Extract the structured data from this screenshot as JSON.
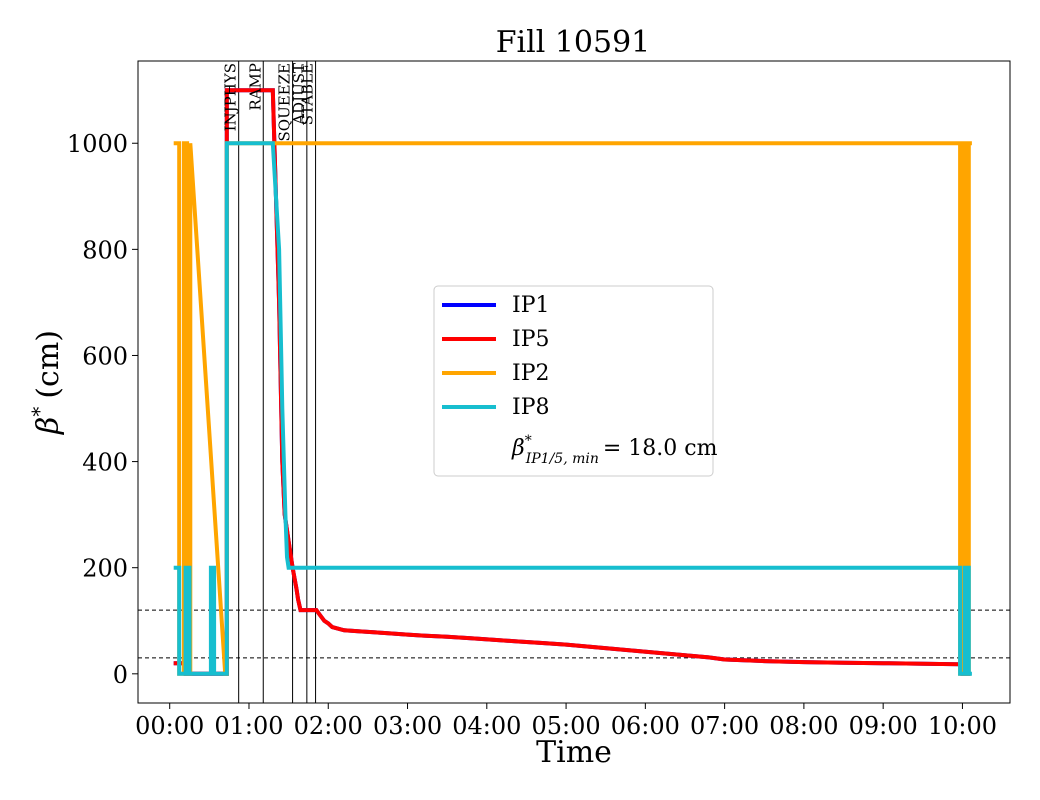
{
  "chart_data": {
    "type": "line",
    "title": "Fill 10591",
    "xlabel": "Time",
    "ylabel_symbol": "β",
    "ylabel_sup": "*",
    "ylabel_unit": "(cm)",
    "xlim": [
      -0.4,
      10.6
    ],
    "ylim": [
      -55,
      1155
    ],
    "x_ticks": [
      0,
      1,
      2,
      3,
      4,
      5,
      6,
      7,
      8,
      9,
      10
    ],
    "x_tick_labels": [
      "00:00",
      "01:00",
      "02:00",
      "03:00",
      "04:00",
      "05:00",
      "06:00",
      "07:00",
      "08:00",
      "09:00",
      "10:00"
    ],
    "y_ticks": [
      0,
      200,
      400,
      600,
      800,
      1000
    ],
    "y_tick_labels": [
      "0",
      "200",
      "400",
      "600",
      "800",
      "1000"
    ],
    "grid": false,
    "legend_position": "center",
    "legend": {
      "entries": [
        "IP1",
        "IP5",
        "IP2",
        "IP8"
      ],
      "beta_min_symbol": "β",
      "beta_min_sup": "*",
      "beta_min_sub": "IP1/5, min",
      "beta_min_value": "= 18.0 cm"
    },
    "phases": [
      {
        "label": "INJPHYS",
        "x": 0.87
      },
      {
        "label": "RAMP",
        "x": 1.18
      },
      {
        "label": "SQUEEZE",
        "x": 1.55
      },
      {
        "label": "ADJUST",
        "x": 1.73
      },
      {
        "label": "STABLE",
        "x": 1.84
      }
    ],
    "reference_lines": [
      120,
      30
    ],
    "colors": {
      "IP1": "#0000ff",
      "IP5": "#ff0000",
      "IP2": "#ffa500",
      "IP8": "#17becf"
    },
    "series": [
      {
        "name": "IP1",
        "x": [
          0.05,
          0.2,
          0.2,
          0.7,
          0.72,
          0.72,
          1.3,
          1.38,
          1.42,
          1.45,
          1.5,
          1.55,
          1.6,
          1.62,
          1.65,
          1.85,
          1.9,
          1.95,
          2.0,
          2.05,
          2.2,
          2.4,
          2.6,
          2.8,
          3.0,
          3.2,
          3.5,
          3.8,
          4.1,
          4.4,
          4.7,
          5.0,
          5.3,
          5.6,
          5.9,
          6.2,
          6.5,
          6.8,
          7.0,
          7.5,
          8.0,
          8.5,
          9.0,
          9.5,
          10.0,
          10.0,
          10.1
        ],
        "y": [
          20,
          20,
          0,
          0,
          0,
          1100,
          1100,
          700,
          400,
          300,
          250,
          200,
          160,
          140,
          120,
          120,
          110,
          100,
          95,
          88,
          82,
          80,
          78,
          76,
          74,
          72,
          70,
          67,
          64,
          61,
          58,
          55,
          51,
          47,
          43,
          39,
          35,
          31,
          27,
          24,
          22,
          21,
          20,
          19,
          18,
          0,
          0
        ]
      },
      {
        "name": "IP5",
        "x": [
          0.05,
          0.2,
          0.2,
          0.7,
          0.72,
          0.72,
          1.3,
          1.38,
          1.42,
          1.45,
          1.5,
          1.55,
          1.6,
          1.62,
          1.65,
          1.85,
          1.9,
          1.95,
          2.0,
          2.05,
          2.2,
          2.4,
          2.6,
          2.8,
          3.0,
          3.2,
          3.5,
          3.8,
          4.1,
          4.4,
          4.7,
          5.0,
          5.3,
          5.6,
          5.9,
          6.2,
          6.5,
          6.8,
          7.0,
          7.5,
          8.0,
          8.5,
          9.0,
          9.5,
          10.0,
          10.0,
          10.1
        ],
        "y": [
          20,
          20,
          0,
          0,
          0,
          1100,
          1100,
          700,
          400,
          300,
          250,
          200,
          160,
          140,
          120,
          120,
          110,
          100,
          95,
          88,
          82,
          80,
          78,
          76,
          74,
          72,
          70,
          67,
          64,
          61,
          58,
          55,
          51,
          47,
          43,
          39,
          35,
          31,
          27,
          24,
          22,
          21,
          20,
          19,
          18,
          0,
          0
        ]
      },
      {
        "name": "IP2",
        "x": [
          0.05,
          0.12,
          0.12,
          0.18,
          0.18,
          0.22,
          0.22,
          0.26,
          0.26,
          0.7,
          0.72,
          0.72,
          1.3,
          1.42,
          1.44,
          1.44,
          9.97,
          9.97,
          10.0,
          10.0,
          10.04,
          10.04,
          10.08,
          10.08,
          10.12
        ],
        "y": [
          1000,
          1000,
          0,
          0,
          1000,
          1000,
          0,
          0,
          1000,
          0,
          0,
          1000,
          1000,
          1000,
          1000,
          1000,
          1000,
          0,
          0,
          1000,
          1000,
          0,
          0,
          1000,
          1000
        ]
      },
      {
        "name": "IP8",
        "x": [
          0.05,
          0.12,
          0.12,
          0.2,
          0.2,
          0.25,
          0.25,
          0.32,
          0.32,
          0.52,
          0.52,
          0.56,
          0.56,
          0.72,
          0.72,
          1.3,
          1.38,
          1.42,
          1.46,
          1.48,
          1.5,
          9.97,
          9.97,
          10.03,
          10.03,
          10.08,
          10.08,
          10.12
        ],
        "y": [
          200,
          200,
          0,
          0,
          200,
          200,
          0,
          0,
          0,
          0,
          200,
          200,
          0,
          0,
          1000,
          1000,
          800,
          500,
          300,
          220,
          200,
          200,
          0,
          0,
          200,
          200,
          0,
          0
        ]
      }
    ]
  }
}
